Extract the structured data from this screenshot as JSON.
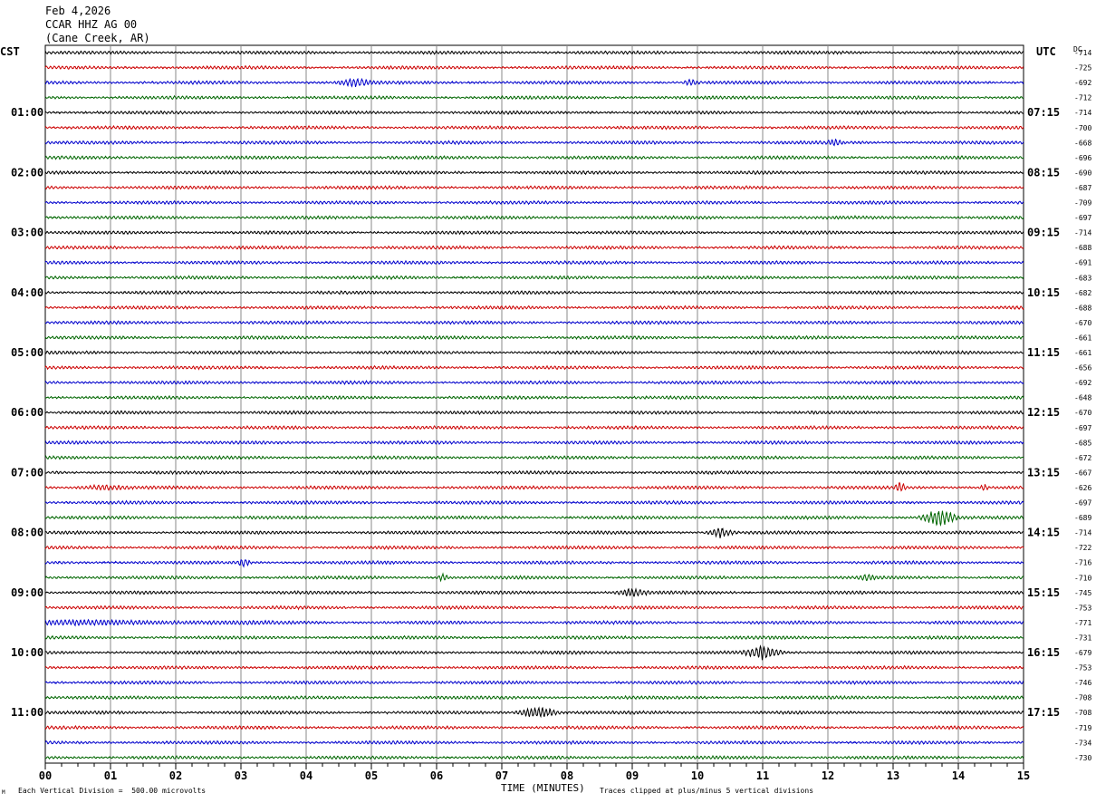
{
  "header": {
    "date": "Feb 4,2026",
    "station": "CCAR HHZ AG 00",
    "location": "(Cane Creek, AR)"
  },
  "footer": {
    "scale_note": "Each Vertical Division =  500.00 microvolts",
    "clip_note": "Traces clipped at plus/minus 5 vertical divisions",
    "corner_mark": "M"
  },
  "chart_data": {
    "type": "line",
    "title": "",
    "xlabel": "TIME (MINUTES)",
    "xlim": [
      0,
      15
    ],
    "x_ticks": [
      "00",
      "01",
      "02",
      "03",
      "04",
      "05",
      "06",
      "07",
      "08",
      "09",
      "10",
      "11",
      "12",
      "13",
      "14",
      "15"
    ],
    "left_axis_label": "CST",
    "right_axis_label": "UTC",
    "dc_label": "DC",
    "left_hour_labels": [
      "01:00",
      "02:00",
      "03:00",
      "04:00",
      "05:00",
      "06:00",
      "07:00",
      "08:00",
      "09:00",
      "10:00",
      "11:00"
    ],
    "right_hour_labels": [
      "07:15",
      "08:15",
      "09:15",
      "10:15",
      "11:15",
      "12:15",
      "13:15",
      "14:15",
      "15:15",
      "16:15",
      "17:15"
    ],
    "hour_label_first_row": 4,
    "hour_label_row_step": 4,
    "trace_count": 48,
    "trace_minutes": 15,
    "trace_colors": [
      "#000000",
      "#cc0000",
      "#0000cc",
      "#006600"
    ],
    "dc_offsets": [
      "-714",
      "-725",
      "-692",
      "-712",
      "-714",
      "-700",
      "-668",
      "-696",
      "-690",
      "-687",
      "-709",
      "-697",
      "-714",
      "-688",
      "-691",
      "-683",
      "-682",
      "-688",
      "-670",
      "-661",
      "-661",
      "-656",
      "-692",
      "-648",
      "-670",
      "-697",
      "-685",
      "-672",
      "-667",
      "-626",
      "-697",
      "-689",
      "-714",
      "-722",
      "-716",
      "-710",
      "-745",
      "-753",
      "-771",
      "-731",
      "-679",
      "-753",
      "-746",
      "-708",
      "-708",
      "-719",
      "-734",
      "-730"
    ],
    "events": [
      {
        "trace": 2,
        "minute": 4.75,
        "amp": 5,
        "dur": 0.35
      },
      {
        "trace": 2,
        "minute": 9.9,
        "amp": 4,
        "dur": 0.15
      },
      {
        "trace": 6,
        "minute": 12.1,
        "amp": 3.5,
        "dur": 0.15
      },
      {
        "trace": 29,
        "minute": 0.9,
        "amp": 3,
        "dur": 0.5
      },
      {
        "trace": 29,
        "minute": 13.1,
        "amp": 8,
        "dur": 0.1
      },
      {
        "trace": 29,
        "minute": 14.4,
        "amp": 5,
        "dur": 0.08
      },
      {
        "trace": 31,
        "minute": 13.7,
        "amp": 12,
        "dur": 0.35
      },
      {
        "trace": 32,
        "minute": 10.35,
        "amp": 7,
        "dur": 0.25
      },
      {
        "trace": 34,
        "minute": 3.05,
        "amp": 6,
        "dur": 0.12
      },
      {
        "trace": 35,
        "minute": 6.1,
        "amp": 5,
        "dur": 0.12
      },
      {
        "trace": 35,
        "minute": 12.6,
        "amp": 4,
        "dur": 0.15
      },
      {
        "trace": 36,
        "minute": 9.0,
        "amp": 5,
        "dur": 0.3
      },
      {
        "trace": 38,
        "minute": 0.5,
        "amp": 2.5,
        "dur": 4.0
      },
      {
        "trace": 40,
        "minute": 11.0,
        "amp": 9,
        "dur": 0.35
      },
      {
        "trace": 44,
        "minute": 7.55,
        "amp": 8,
        "dur": 0.4
      }
    ]
  }
}
